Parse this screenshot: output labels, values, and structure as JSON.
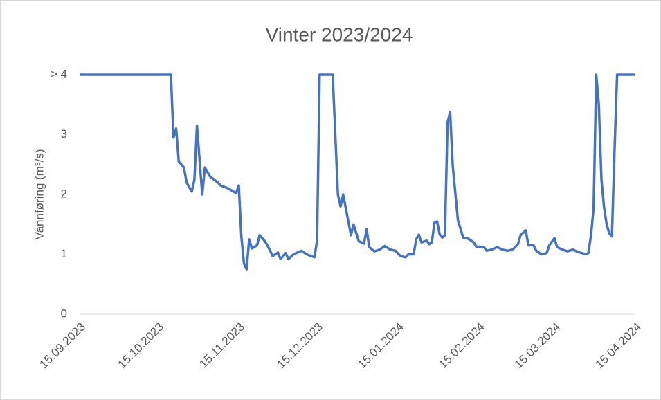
{
  "chart_data": {
    "type": "line",
    "title": "Vinter 2023/2024",
    "y_label": "Vannføring (m³/s)",
    "color": "#4472c4",
    "xlim": [
      "15.09.2023",
      "15.04.2024"
    ],
    "xticks": [
      "15.09.2023",
      "15.10.2023",
      "15.11.2023",
      "15.12.2023",
      "15.01.2024",
      "15.02.2024",
      "15.03.2024",
      "15.04.2024"
    ],
    "ylim": [
      0,
      4
    ],
    "yticks": [
      0,
      1,
      2,
      3,
      {
        "value": 4,
        "label": "> 4"
      }
    ],
    "x": [
      "15.09.2023",
      "20.10.2023",
      "21.10.2023",
      "22.10.2023",
      "23.10.2023",
      "25.10.2023",
      "26.10.2023",
      "28.10.2023",
      "29.10.2023",
      "30.10.2023",
      "01.11.2023",
      "02.11.2023",
      "04.11.2023",
      "07.11.2023",
      "08.11.2023",
      "11.11.2023",
      "14.11.2023",
      "15.11.2023",
      "16.11.2023",
      "17.11.2023",
      "18.11.2023",
      "19.11.2023",
      "20.11.2023",
      "22.11.2023",
      "23.11.2023",
      "25.11.2023",
      "26.11.2023",
      "28.11.2023",
      "30.11.2023",
      "01.12.2023",
      "03.12.2023",
      "04.12.2023",
      "06.12.2023",
      "09.12.2023",
      "11.12.2023",
      "14.12.2023",
      "15.12.2023",
      "16.12.2023",
      "21.12.2023",
      "23.12.2023",
      "24.12.2023",
      "25.12.2023",
      "28.12.2023",
      "29.12.2023",
      "31.12.2023",
      "02.01.2024",
      "03.01.2024",
      "04.01.2024",
      "06.01.2024",
      "08.01.2024",
      "10.01.2024",
      "12.01.2024",
      "14.01.2024",
      "16.01.2024",
      "18.01.2024",
      "19.01.2024",
      "21.01.2024",
      "22.01.2024",
      "23.01.2024",
      "24.01.2024",
      "26.01.2024",
      "27.01.2024",
      "28.01.2024",
      "29.01.2024",
      "30.01.2024",
      "31.01.2024",
      "01.02.2024",
      "02.02.2024",
      "03.02.2024",
      "04.02.2024",
      "05.02.2024",
      "07.02.2024",
      "09.02.2024",
      "11.02.2024",
      "13.02.2024",
      "14.02.2024",
      "17.02.2024",
      "18.02.2024",
      "20.02.2024",
      "22.02.2024",
      "24.02.2024",
      "26.02.2024",
      "28.02.2024",
      "01.03.2024",
      "02.03.2024",
      "04.03.2024",
      "05.03.2024",
      "07.03.2024",
      "08.03.2024",
      "10.03.2024",
      "12.03.2024",
      "13.03.2024",
      "15.03.2024",
      "16.03.2024",
      "18.03.2024",
      "20.03.2024",
      "22.03.2024",
      "24.03.2024",
      "27.03.2024",
      "28.03.2024",
      "29.03.2024",
      "30.03.2024",
      "31.03.2024",
      "01.04.2024",
      "02.04.2024",
      "03.04.2024",
      "04.04.2024",
      "05.04.2024",
      "06.04.2024",
      "07.04.2024",
      "08.04.2024",
      "15.04.2024"
    ],
    "values": [
      4,
      4,
      2.95,
      3.1,
      2.55,
      2.45,
      2.2,
      2.05,
      2.25,
      3.15,
      2.0,
      2.45,
      2.3,
      2.2,
      2.15,
      2.1,
      2.02,
      2.15,
      1.3,
      0.85,
      0.75,
      1.25,
      1.1,
      1.15,
      1.32,
      1.22,
      1.15,
      0.97,
      1.03,
      0.92,
      1.02,
      0.92,
      1.0,
      1.06,
      1.0,
      0.95,
      1.23,
      4,
      4,
      2.0,
      1.8,
      2.0,
      1.32,
      1.5,
      1.22,
      1.18,
      1.42,
      1.12,
      1.05,
      1.08,
      1.14,
      1.08,
      1.06,
      0.97,
      0.95,
      1.0,
      1.0,
      1.25,
      1.33,
      1.2,
      1.23,
      1.17,
      1.2,
      1.53,
      1.55,
      1.33,
      1.28,
      1.32,
      3.2,
      3.38,
      2.48,
      1.57,
      1.28,
      1.26,
      1.2,
      1.13,
      1.12,
      1.06,
      1.08,
      1.12,
      1.08,
      1.06,
      1.08,
      1.17,
      1.32,
      1.4,
      1.15,
      1.15,
      1.06,
      1.0,
      1.02,
      1.15,
      1.27,
      1.12,
      1.08,
      1.05,
      1.08,
      1.04,
      1.0,
      1.02,
      1.32,
      1.78,
      4,
      3.5,
      2.25,
      1.78,
      1.5,
      1.35,
      1.3,
      2.7,
      4,
      4
    ]
  }
}
